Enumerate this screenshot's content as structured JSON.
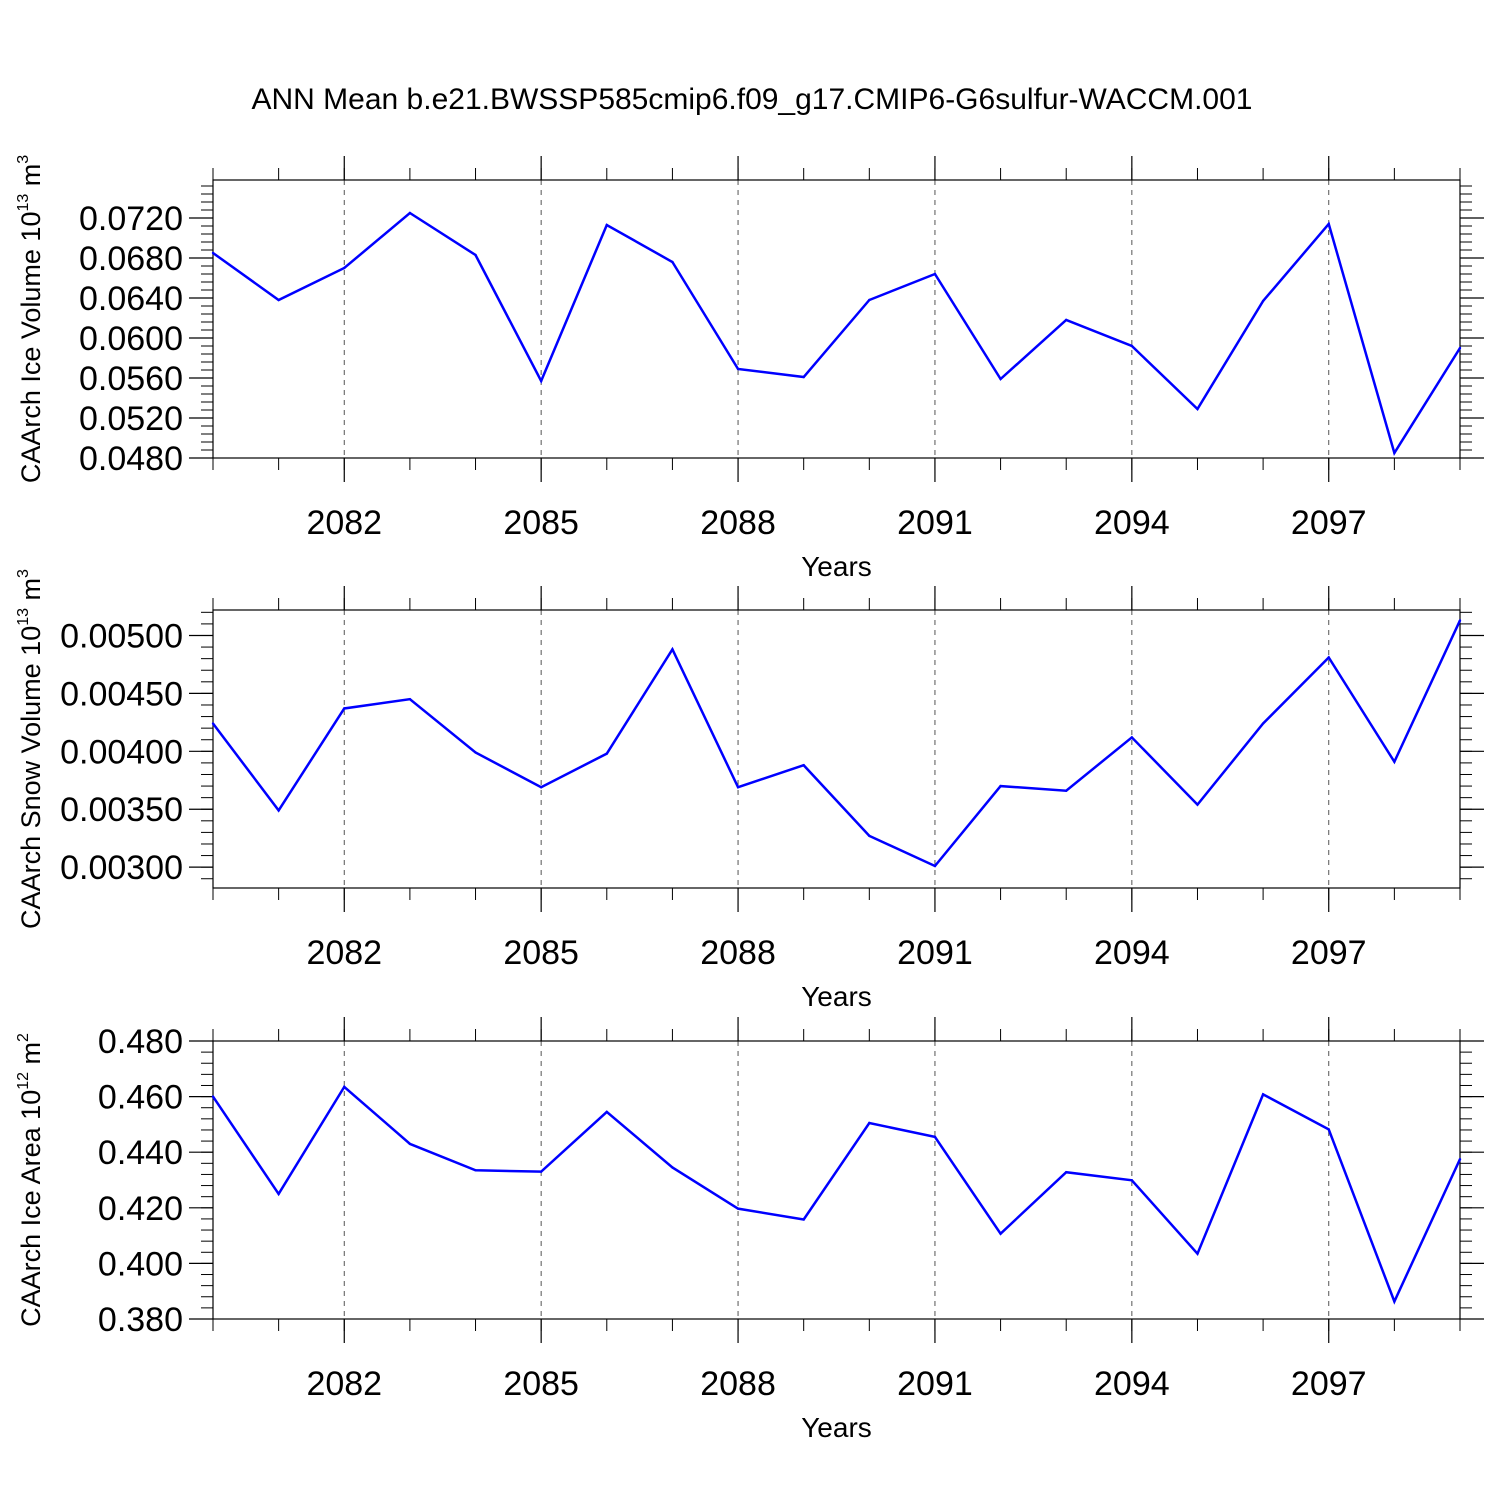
{
  "title": "ANN Mean b.e21.BWSSP585cmip6.f09_g17.CMIP6-G6sulfur-WACCM.001",
  "colors": {
    "line": "#0000ff",
    "axis": "#000000",
    "grid": "#555555",
    "background": "#ffffff"
  },
  "chart_data": [
    {
      "type": "line",
      "title": "",
      "xlabel": "Years",
      "ylabel": {
        "text": "CAArch Ice Volume 10",
        "exp": "13",
        "unit": " m",
        "unit_exp": "3"
      },
      "x": [
        2080,
        2081,
        2082,
        2083,
        2084,
        2085,
        2086,
        2087,
        2088,
        2089,
        2090,
        2091,
        2092,
        2093,
        2094,
        2095,
        2096,
        2097,
        2098,
        2099
      ],
      "series": [
        {
          "values": [
            0.0685,
            0.0638,
            0.067,
            0.0725,
            0.0683,
            0.0557,
            0.0713,
            0.0676,
            0.0569,
            0.0561,
            0.0638,
            0.0664,
            0.0559,
            0.0618,
            0.0592,
            0.0529,
            0.0637,
            0.0714,
            0.0485,
            0.059
          ]
        }
      ],
      "xlim": [
        2080,
        2099
      ],
      "ylim": [
        0.048,
        0.0758
      ],
      "xticks": [
        "2082",
        "2085",
        "2088",
        "2091",
        "2094",
        "2097"
      ],
      "xtick_values": [
        2082,
        2085,
        2088,
        2091,
        2094,
        2097
      ],
      "yticks": [
        "0.0480",
        "0.0520",
        "0.0560",
        "0.0600",
        "0.0640",
        "0.0680",
        "0.0720"
      ],
      "ytick_values": [
        0.048,
        0.052,
        0.056,
        0.06,
        0.064,
        0.068,
        0.072
      ],
      "ymajor_step": 0.004,
      "grid": "x-dashed"
    },
    {
      "type": "line",
      "title": "",
      "xlabel": "Years",
      "ylabel": {
        "text": "CAArch Snow Volume 10",
        "exp": "13",
        "unit": " m",
        "unit_exp": "3"
      },
      "x": [
        2080,
        2081,
        2082,
        2083,
        2084,
        2085,
        2086,
        2087,
        2088,
        2089,
        2090,
        2091,
        2092,
        2093,
        2094,
        2095,
        2096,
        2097,
        2098,
        2099
      ],
      "series": [
        {
          "values": [
            0.00424,
            0.00349,
            0.00437,
            0.00445,
            0.00399,
            0.00369,
            0.00398,
            0.00488,
            0.00369,
            0.00388,
            0.00327,
            0.00301,
            0.0037,
            0.00366,
            0.00412,
            0.00354,
            0.00424,
            0.00481,
            0.00391,
            0.00513
          ]
        }
      ],
      "xlim": [
        2080,
        2099
      ],
      "ylim": [
        0.00282,
        0.00522
      ],
      "xticks": [
        "2082",
        "2085",
        "2088",
        "2091",
        "2094",
        "2097"
      ],
      "xtick_values": [
        2082,
        2085,
        2088,
        2091,
        2094,
        2097
      ],
      "yticks": [
        "0.00300",
        "0.00350",
        "0.00400",
        "0.00450",
        "0.00500"
      ],
      "ytick_values": [
        0.003,
        0.0035,
        0.004,
        0.0045,
        0.005
      ],
      "ymajor_step": 0.0005,
      "grid": "x-dashed"
    },
    {
      "type": "line",
      "title": "",
      "xlabel": "Years",
      "ylabel": {
        "text": "CAArch Ice Area 10",
        "exp": "12",
        "unit": " m",
        "unit_exp": "2"
      },
      "x": [
        2080,
        2081,
        2082,
        2083,
        2084,
        2085,
        2086,
        2087,
        2088,
        2089,
        2090,
        2091,
        2092,
        2093,
        2094,
        2095,
        2096,
        2097,
        2098,
        2099
      ],
      "series": [
        {
          "values": [
            0.46,
            0.425,
            0.4635,
            0.443,
            0.4335,
            0.433,
            0.4545,
            0.4345,
            0.4197,
            0.4158,
            0.4505,
            0.4455,
            0.4107,
            0.4328,
            0.4299,
            0.4035,
            0.4608,
            0.4482,
            0.3863,
            0.4375
          ]
        }
      ],
      "xlim": [
        2080,
        2099
      ],
      "ylim": [
        0.38,
        0.48
      ],
      "xticks": [
        "2082",
        "2085",
        "2088",
        "2091",
        "2094",
        "2097"
      ],
      "xtick_values": [
        2082,
        2085,
        2088,
        2091,
        2094,
        2097
      ],
      "yticks": [
        "0.380",
        "0.400",
        "0.420",
        "0.440",
        "0.460",
        "0.480"
      ],
      "ytick_values": [
        0.38,
        0.4,
        0.42,
        0.44,
        0.46,
        0.48
      ],
      "ymajor_step": 0.02,
      "grid": "x-dashed"
    }
  ]
}
